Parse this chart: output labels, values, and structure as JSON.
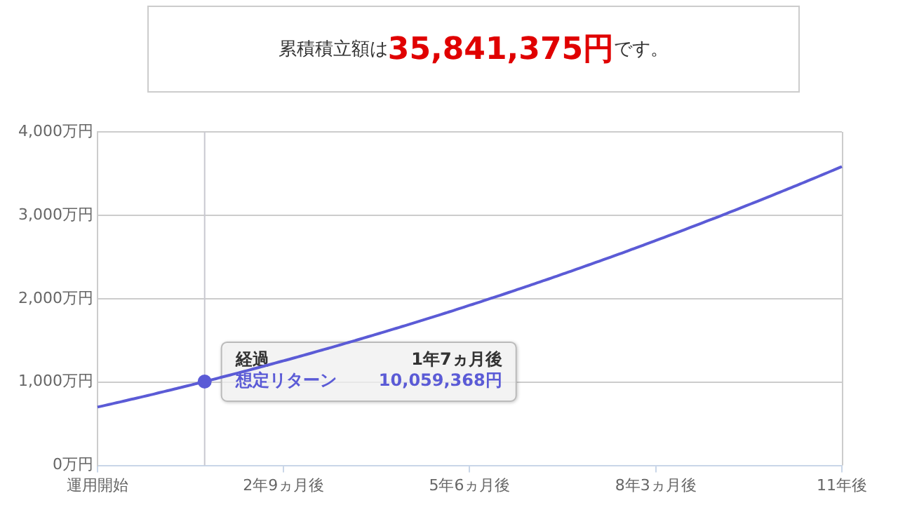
{
  "chart_data": {
    "type": "line",
    "title": "累積積立額は35,841,375円です。",
    "categories": [
      "運用開始",
      null,
      null,
      null,
      null,
      null,
      null,
      null,
      null,
      null,
      null,
      null,
      null,
      null,
      null,
      null,
      null,
      null,
      null,
      null,
      null,
      null,
      null,
      null,
      null,
      null,
      null,
      null,
      null,
      null,
      null,
      null,
      null,
      "2年9ヵ月後",
      null,
      null,
      null,
      null,
      null,
      null,
      null,
      null,
      null,
      null,
      null,
      null,
      null,
      null,
      null,
      null,
      null,
      null,
      null,
      null,
      null,
      null,
      null,
      null,
      null,
      null,
      null,
      null,
      null,
      null,
      null,
      null,
      "5年6ヵ月後",
      null,
      null,
      null,
      null,
      null,
      null,
      null,
      null,
      null,
      null,
      null,
      null,
      null,
      null,
      null,
      null,
      null,
      null,
      null,
      null,
      null,
      null,
      null,
      null,
      null,
      null,
      null,
      null,
      null,
      null,
      null,
      null,
      "8年3ヵ月後",
      null,
      null,
      null,
      null,
      null,
      null,
      null,
      null,
      null,
      null,
      null,
      null,
      null,
      null,
      null,
      null,
      null,
      null,
      null,
      null,
      null,
      null,
      null,
      null,
      null,
      null,
      null,
      null,
      null,
      null,
      null,
      null,
      "11年後"
    ],
    "series": [
      {
        "color": "#5b5bd6",
        "values": [
          700,
          715,
          730,
          746,
          761,
          777,
          793,
          808,
          824,
          840,
          856,
          873,
          889,
          905,
          922,
          939,
          955,
          972,
          989,
          1006,
          1023,
          1040,
          1058,
          1075,
          1093,
          1110,
          1128,
          1146,
          1164,
          1182,
          1200,
          1218,
          1237,
          1255,
          1273,
          1292,
          1311,
          1330,
          1349,
          1368,
          1387,
          1406,
          1425,
          1445,
          1465,
          1484,
          1504,
          1524,
          1544,
          1564,
          1584,
          1604,
          1625,
          1645,
          1666,
          1686,
          1707,
          1728,
          1749,
          1770,
          1791,
          1813,
          1834,
          1855,
          1877,
          1899,
          1921,
          1942,
          1964,
          1987,
          2009,
          2031,
          2053,
          2076,
          2099,
          2121,
          2144,
          2167,
          2190,
          2213,
          2236,
          2260,
          2283,
          2307,
          2330,
          2354,
          2378,
          2402,
          2426,
          2450,
          2474,
          2498,
          2523,
          2547,
          2572,
          2597,
          2622,
          2647,
          2672,
          2697,
          2722,
          2747,
          2773,
          2798,
          2824,
          2850,
          2876,
          2902,
          2928,
          2954,
          2980,
          3006,
          3033,
          3059,
          3086,
          3113,
          3140,
          3167,
          3194,
          3221,
          3248,
          3276,
          3303,
          3331,
          3358,
          3386,
          3414,
          3442,
          3470,
          3498,
          3527,
          3555,
          3584
        ]
      },
      {
        "type": "scatter",
        "marker": "circle",
        "color": "#5b5bd6",
        "values": [
          null,
          null,
          null,
          null,
          null,
          null,
          null,
          null,
          null,
          null,
          null,
          null,
          null,
          null,
          null,
          null,
          null,
          null,
          null,
          1006,
          null,
          null,
          null,
          null,
          null,
          null,
          null,
          null,
          null,
          null,
          null,
          null,
          null,
          null,
          null,
          null,
          null,
          null,
          null,
          null,
          null,
          null,
          null,
          null,
          null,
          null,
          null,
          null,
          null,
          null,
          null,
          null,
          null,
          null,
          null,
          null,
          null,
          null,
          null,
          null,
          null,
          null,
          null,
          null,
          null,
          null,
          null,
          null,
          null,
          null,
          null,
          null,
          null,
          null,
          null,
          null,
          null,
          null,
          null,
          null,
          null,
          null,
          null,
          null,
          null,
          null,
          null,
          null,
          null,
          null,
          null,
          null,
          null,
          null,
          null,
          null,
          null,
          null,
          null,
          null,
          null,
          null,
          null,
          null,
          null,
          null,
          null,
          null,
          null,
          null,
          null,
          null,
          null,
          null,
          null,
          null,
          null,
          null,
          null,
          null,
          null,
          null,
          null,
          null,
          null,
          null,
          null,
          null,
          null,
          null,
          null,
          null,
          null
        ]
      }
    ],
    "ylim": [
      0,
      4000
    ],
    "yticks": [
      {
        "value": 0,
        "label": "0万円"
      },
      {
        "value": 1000,
        "label": "1,000万円"
      },
      {
        "value": 2000,
        "label": "2,000万円"
      },
      {
        "value": 3000,
        "label": "3,000万円"
      },
      {
        "value": 4000,
        "label": "4,000万円"
      }
    ],
    "grid": "y",
    "marker": "none",
    "line_style": "solid",
    "annotations": [
      "経過",
      "1年7ヵ月後",
      "想定リターン",
      "10,059,368円"
    ]
  }
}
